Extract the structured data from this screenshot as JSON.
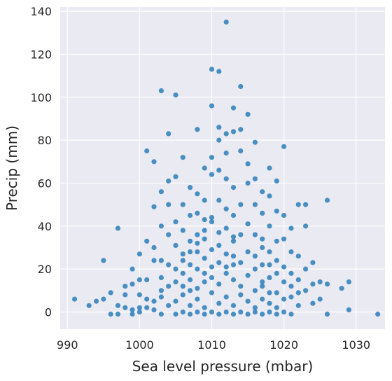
{
  "chart_data": {
    "type": "scatter",
    "title": "",
    "xlabel": "Sea level pressure (mbar)",
    "ylabel": "Precip (mm)",
    "xlim": [
      989,
      1034
    ],
    "ylim": [
      -8,
      142
    ],
    "x_ticks": [
      990,
      1000,
      1010,
      1020,
      1030
    ],
    "x_tick_labels": [
      "990",
      "1000",
      "1010",
      "1020",
      "1030"
    ],
    "y_ticks": [
      0,
      20,
      40,
      60,
      80,
      100,
      120,
      140
    ],
    "y_tick_labels": [
      "0",
      "20",
      "40",
      "60",
      "80",
      "100",
      "120",
      "140"
    ],
    "grid": true,
    "point_color": "#1f77b4",
    "background_color": "#eaeaf2",
    "series": [
      {
        "values": [
          [
            991,
            6
          ],
          [
            993,
            3
          ],
          [
            994,
            5
          ],
          [
            995,
            6
          ],
          [
            995,
            24
          ],
          [
            996,
            9
          ],
          [
            996,
            -1
          ],
          [
            997,
            3
          ],
          [
            997,
            39
          ],
          [
            997,
            -1
          ],
          [
            998,
            8
          ],
          [
            998,
            12
          ],
          [
            998,
            2
          ],
          [
            999,
            13
          ],
          [
            999,
            20
          ],
          [
            999,
            1
          ],
          [
            999,
            -1
          ],
          [
            1000,
            15
          ],
          [
            1000,
            27
          ],
          [
            1000,
            8
          ],
          [
            1000,
            2
          ],
          [
            1001,
            15
          ],
          [
            1001,
            33
          ],
          [
            1001,
            6
          ],
          [
            1001,
            75
          ],
          [
            1002,
            49
          ],
          [
            1002,
            70
          ],
          [
            1002,
            30
          ],
          [
            1002,
            24
          ],
          [
            1002,
            5
          ],
          [
            1003,
            103
          ],
          [
            1003,
            40
          ],
          [
            1003,
            56
          ],
          [
            1003,
            24
          ],
          [
            1003,
            16
          ],
          [
            1004,
            83
          ],
          [
            1004,
            50
          ],
          [
            1004,
            36
          ],
          [
            1004,
            61
          ],
          [
            1004,
            22
          ],
          [
            1005,
            101
          ],
          [
            1005,
            63
          ],
          [
            1005,
            42
          ],
          [
            1005,
            31
          ],
          [
            1005,
            14
          ],
          [
            1006,
            72
          ],
          [
            1006,
            50
          ],
          [
            1006,
            38
          ],
          [
            1006,
            27
          ],
          [
            1006,
            18
          ],
          [
            1007,
            58
          ],
          [
            1007,
            45
          ],
          [
            1007,
            33
          ],
          [
            1007,
            22
          ],
          [
            1007,
            10
          ],
          [
            1008,
            85
          ],
          [
            1008,
            55
          ],
          [
            1008,
            46
          ],
          [
            1008,
            36
          ],
          [
            1008,
            28
          ],
          [
            1009,
            67
          ],
          [
            1009,
            52
          ],
          [
            1009,
            43
          ],
          [
            1009,
            34
          ],
          [
            1009,
            18
          ],
          [
            1010,
            113
          ],
          [
            1010,
            96
          ],
          [
            1010,
            72
          ],
          [
            1010,
            64
          ],
          [
            1010,
            44
          ],
          [
            1011,
            112
          ],
          [
            1011,
            86
          ],
          [
            1011,
            80
          ],
          [
            1011,
            66
          ],
          [
            1011,
            52
          ],
          [
            1012,
            135
          ],
          [
            1012,
            83
          ],
          [
            1012,
            74
          ],
          [
            1012,
            62
          ],
          [
            1012,
            48
          ],
          [
            1013,
            95
          ],
          [
            1013,
            84
          ],
          [
            1013,
            58
          ],
          [
            1013,
            45
          ],
          [
            1013,
            26
          ],
          [
            1014,
            105
          ],
          [
            1014,
            85
          ],
          [
            1014,
            75
          ],
          [
            1014,
            50
          ],
          [
            1014,
            36
          ],
          [
            1015,
            92
          ],
          [
            1015,
            69
          ],
          [
            1015,
            60
          ],
          [
            1015,
            41
          ],
          [
            1015,
            28
          ],
          [
            1016,
            79
          ],
          [
            1016,
            62
          ],
          [
            1016,
            50
          ],
          [
            1016,
            36
          ],
          [
            1016,
            20
          ],
          [
            1017,
            56
          ],
          [
            1017,
            46
          ],
          [
            1017,
            34
          ],
          [
            1017,
            22
          ],
          [
            1017,
            12
          ],
          [
            1018,
            67
          ],
          [
            1018,
            54
          ],
          [
            1018,
            40
          ],
          [
            1018,
            28
          ],
          [
            1018,
            16
          ],
          [
            1019,
            61
          ],
          [
            1019,
            47
          ],
          [
            1019,
            33
          ],
          [
            1019,
            24
          ],
          [
            1019,
            9
          ],
          [
            1020,
            77
          ],
          [
            1020,
            45
          ],
          [
            1020,
            34
          ],
          [
            1020,
            21
          ],
          [
            1020,
            6
          ],
          [
            1021,
            39
          ],
          [
            1021,
            28
          ],
          [
            1021,
            18
          ],
          [
            1021,
            7
          ],
          [
            1022,
            50
          ],
          [
            1022,
            26
          ],
          [
            1022,
            15
          ],
          [
            1022,
            3
          ],
          [
            1023,
            50
          ],
          [
            1023,
            40
          ],
          [
            1023,
            20
          ],
          [
            1023,
            10
          ],
          [
            1024,
            23
          ],
          [
            1024,
            13
          ],
          [
            1024,
            4
          ],
          [
            1025,
            14
          ],
          [
            1025,
            6
          ],
          [
            1026,
            52
          ],
          [
            1026,
            13
          ],
          [
            1026,
            -1
          ],
          [
            1028,
            11
          ],
          [
            1029,
            14
          ],
          [
            1029,
            1
          ],
          [
            1033,
            -1
          ],
          [
            1005,
            5
          ],
          [
            1006,
            8
          ],
          [
            1007,
            3
          ],
          [
            1008,
            6
          ],
          [
            1009,
            2
          ],
          [
            1010,
            9
          ],
          [
            1011,
            4
          ],
          [
            1012,
            7
          ],
          [
            1013,
            3
          ],
          [
            1014,
            8
          ],
          [
            1015,
            5
          ],
          [
            1016,
            2
          ],
          [
            1017,
            6
          ],
          [
            1018,
            4
          ],
          [
            1019,
            2
          ],
          [
            1004,
            3
          ],
          [
            1003,
            7
          ],
          [
            1002,
            1
          ],
          [
            1001,
            2
          ],
          [
            1000,
            0
          ],
          [
            1006,
            12
          ],
          [
            1007,
            15
          ],
          [
            1008,
            11
          ],
          [
            1009,
            14
          ],
          [
            1010,
            16
          ],
          [
            1011,
            13
          ],
          [
            1012,
            18
          ],
          [
            1013,
            15
          ],
          [
            1014,
            12
          ],
          [
            1015,
            17
          ],
          [
            1016,
            10
          ],
          [
            1017,
            14
          ],
          [
            1018,
            9
          ],
          [
            1009,
            25
          ],
          [
            1010,
            29
          ],
          [
            1011,
            31
          ],
          [
            1012,
            27
          ],
          [
            1013,
            33
          ],
          [
            1014,
            23
          ],
          [
            1008,
            20
          ],
          [
            1011,
            37
          ],
          [
            1010,
            42
          ],
          [
            1012,
            39
          ],
          [
            1013,
            35
          ],
          [
            1009,
            38
          ],
          [
            1007,
            28
          ],
          [
            1008,
            32
          ],
          [
            1006,
            24
          ],
          [
            1005,
            20
          ],
          [
            1004,
            12
          ],
          [
            1003,
            10
          ],
          [
            1016,
            26
          ],
          [
            1017,
            30
          ],
          [
            1018,
            22
          ],
          [
            1019,
            18
          ],
          [
            1020,
            14
          ],
          [
            1021,
            12
          ],
          [
            1022,
            9
          ],
          [
            1006,
            0
          ],
          [
            1008,
            0
          ],
          [
            1010,
            0
          ],
          [
            1012,
            0
          ],
          [
            1014,
            0
          ],
          [
            1016,
            0
          ],
          [
            1018,
            0
          ],
          [
            1020,
            0
          ],
          [
            1007,
            -1
          ],
          [
            1009,
            -1
          ],
          [
            1011,
            -1
          ],
          [
            1013,
            -1
          ],
          [
            1015,
            -1
          ],
          [
            1017,
            -1
          ],
          [
            1019,
            -1
          ],
          [
            1021,
            -1
          ],
          [
            1005,
            -1
          ],
          [
            1003,
            -1
          ],
          [
            1010,
            21
          ],
          [
            1011,
            23
          ],
          [
            1012,
            21
          ],
          [
            1013,
            22
          ]
        ]
      }
    ]
  }
}
